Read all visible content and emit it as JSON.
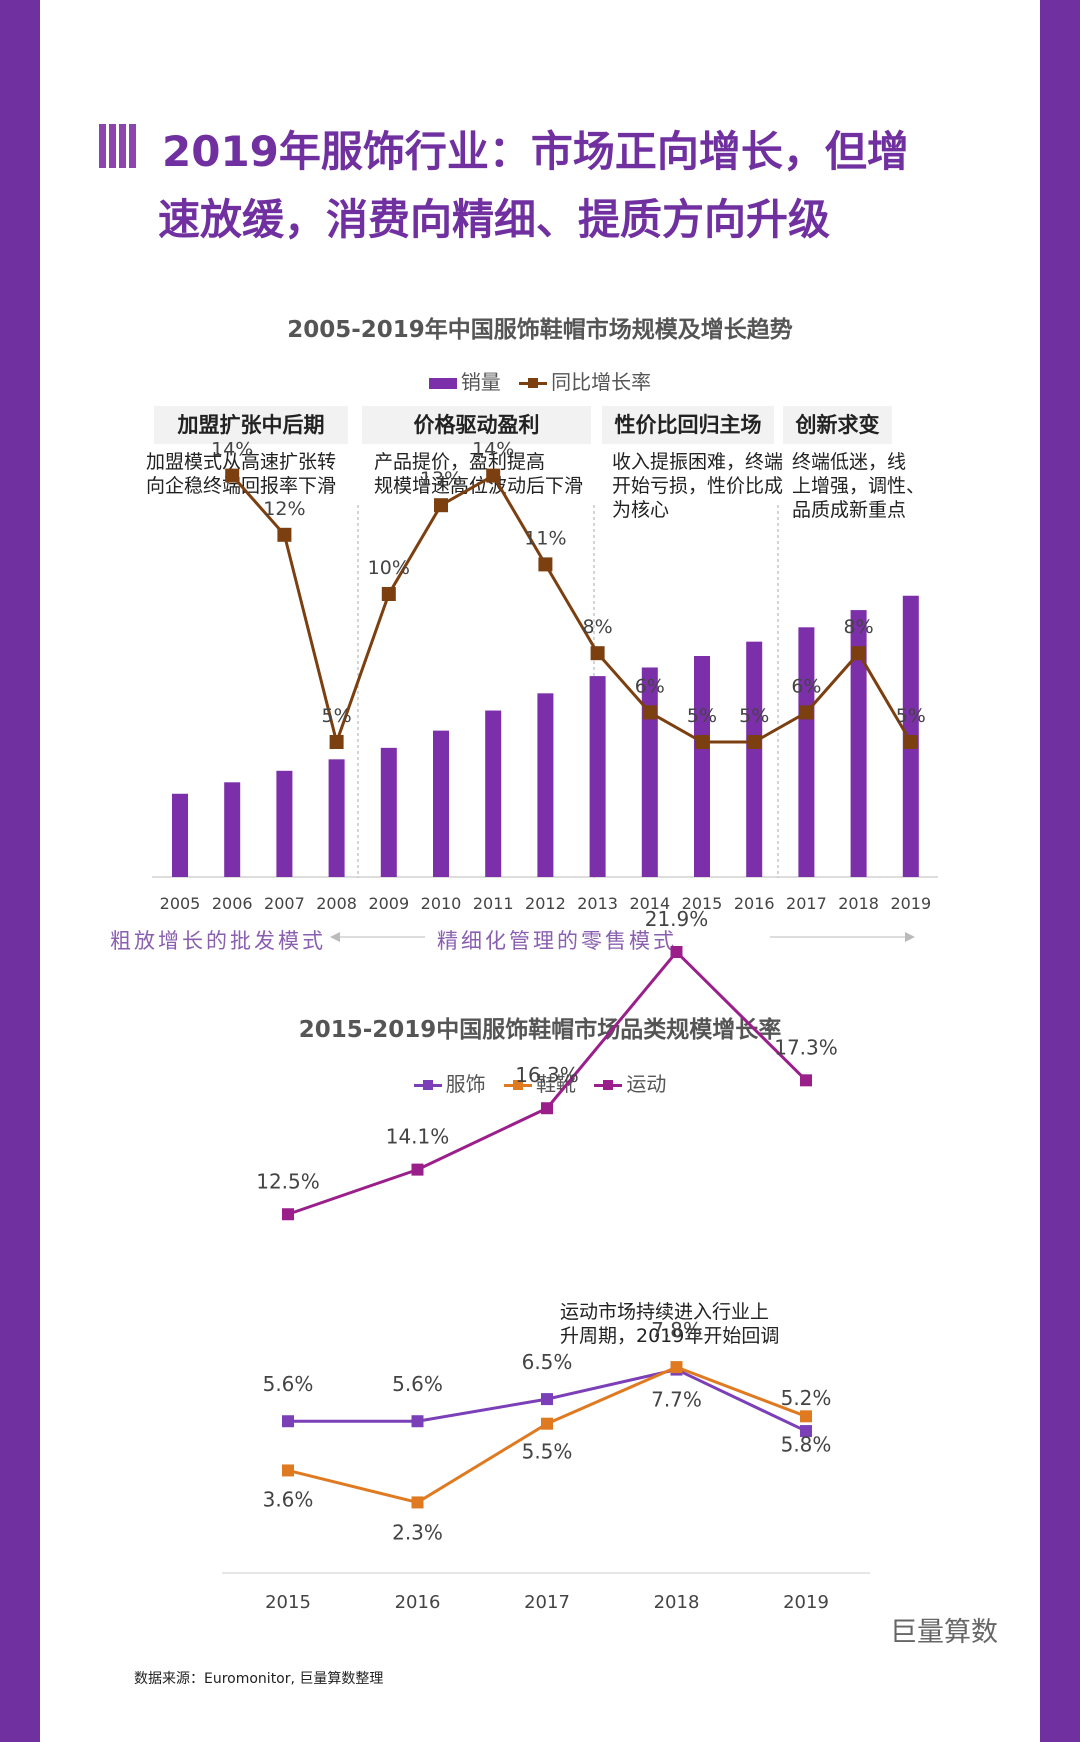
{
  "page_title": {
    "line1": "2019年服饰行业：市场正向增长，但增",
    "line2": "速放缓，消费向精细、提质方向升级"
  },
  "chart1": {
    "title": "2005-2019年中国服饰鞋帽市场规模及增长趋势",
    "legend": {
      "bar": "销量",
      "line": "同比增长率"
    },
    "phases": [
      {
        "name": "加盟扩张中后期",
        "desc": [
          "加盟模式从高速扩张转",
          "向企稳终端回报率下滑"
        ]
      },
      {
        "name": "价格驱动盈利",
        "desc": [
          "产品提价，盈利提高",
          "规模增速高位波动后下滑"
        ]
      },
      {
        "name": "性价比回归主场",
        "desc": [
          "收入提振困难，终端",
          "开始亏损，性价比成",
          "为核心"
        ]
      },
      {
        "name": "创新求变",
        "desc": [
          "终端低迷，线",
          "上增强，调性、",
          "品质成新重点"
        ]
      }
    ],
    "modes": {
      "wholesale": "粗放增长的批发模式",
      "retail": "精细化管理的零售模式"
    }
  },
  "chart2": {
    "title": "2015-2019中国服饰鞋帽市场品类规模增长率",
    "annotation": [
      "运动市场持续进入行业上",
      "升周期，2019年开始回调"
    ]
  },
  "source": "数据来源：Euromonitor, 巨量算数整理",
  "brand": "巨量算数",
  "colors": {
    "bar": "#7b2fa8",
    "growth_line": "#7b3f10",
    "apparel": "#7b3fb8",
    "footwear": "#e07a20",
    "sports": "#9b1f8a",
    "accent": "#7030a0"
  },
  "chart_data": [
    {
      "type": "bar+line",
      "title": "2005-2019年中国服饰鞋帽市场规模及增长趋势",
      "categories": [
        "2005",
        "2006",
        "2007",
        "2008",
        "2009",
        "2010",
        "2011",
        "2012",
        "2013",
        "2014",
        "2015",
        "2016",
        "2017",
        "2018",
        "2019"
      ],
      "series": [
        {
          "name": "销量",
          "type": "bar",
          "values": [
            29,
            33,
            37,
            41,
            45,
            51,
            58,
            64,
            70,
            73,
            77,
            82,
            87,
            93,
            98
          ],
          "unit": "relative (no axis shown)"
        },
        {
          "name": "同比增长率",
          "type": "line",
          "values": [
            null,
            14,
            12,
            5,
            10,
            13,
            14,
            11,
            8,
            6,
            5,
            5,
            6,
            8,
            5
          ],
          "labels": [
            "",
            "14%",
            "12%",
            "5%",
            "10%",
            "13%",
            "14%",
            "11%",
            "8%",
            "6%",
            "5%",
            "5%",
            "6%",
            "8%",
            "5%"
          ]
        }
      ],
      "ylim_bar": [
        0,
        100
      ],
      "ylim_line": [
        0,
        22
      ],
      "grid": false,
      "legend": "top-center"
    },
    {
      "type": "line",
      "title": "2015-2019中国服饰鞋帽市场品类规模增长率",
      "categories": [
        "2015",
        "2016",
        "2017",
        "2018",
        "2019"
      ],
      "series": [
        {
          "name": "服饰",
          "values": [
            5.6,
            5.6,
            6.5,
            7.7,
            5.2
          ],
          "labels": [
            "5.6%",
            "5.6%",
            "6.5%",
            "7.7%",
            "5.2%"
          ]
        },
        {
          "name": "鞋靴",
          "values": [
            3.6,
            2.3,
            5.5,
            7.8,
            5.8
          ],
          "labels": [
            "3.6%",
            "2.3%",
            "5.5%",
            "7.8%",
            "5.8%"
          ]
        },
        {
          "name": "运动",
          "values": [
            12.5,
            14.1,
            16.3,
            21.9,
            17.3
          ],
          "labels": [
            "12.5%",
            "14.1%",
            "16.3%",
            "21.9%",
            "17.3%"
          ]
        }
      ],
      "grid": false,
      "legend": "top-center"
    }
  ]
}
